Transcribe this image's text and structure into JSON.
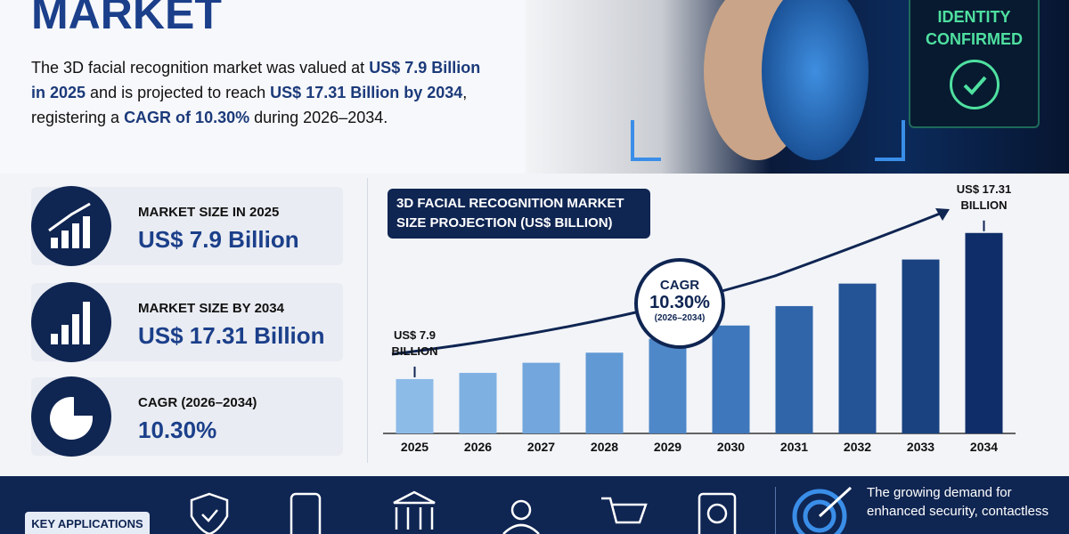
{
  "header": {
    "title": "MARKET",
    "intro": [
      {
        "text": "The 3D facial recognition market was valued at ",
        "bold": false
      },
      {
        "text": "US$ 7.9 Billion in 2025",
        "bold": true
      },
      {
        "text": " and is projected to reach ",
        "bold": false
      },
      {
        "text": "US$ 17.31 Billion by 2034",
        "bold": true
      },
      {
        "text": ", registering a ",
        "bold": false
      },
      {
        "text": "CAGR of 10.30%",
        "bold": true
      },
      {
        "text": " during 2026–2034.",
        "bold": false
      }
    ],
    "badge": "IDENTITY CONFIRMED"
  },
  "cards": [
    {
      "label": "MARKET SIZE IN 2025",
      "value": "US$ 7.9 Billion"
    },
    {
      "label": "MARKET SIZE BY 2034",
      "value": "US$ 17.31 Billion"
    },
    {
      "label": "CAGR (2026–2034)",
      "value": "10.30%"
    }
  ],
  "chart_data": {
    "type": "bar",
    "title": "3D FACIAL RECOGNITION MARKET SIZE PROJECTION (US$ BILLION)",
    "categories": [
      "2025",
      "2026",
      "2027",
      "2028",
      "2029",
      "2030",
      "2031",
      "2032",
      "2033",
      "2034"
    ],
    "values": [
      7.9,
      8.3,
      8.95,
      9.6,
      10.5,
      11.35,
      12.6,
      14.05,
      15.6,
      17.31
    ],
    "value_labels": [
      "US$ 7.9 BILLION",
      null,
      null,
      null,
      null,
      null,
      null,
      null,
      null,
      "US$ 17.31 BILLION"
    ],
    "colors": [
      "#8dbbe8",
      "#7fb0e2",
      "#72a6dc",
      "#6199d4",
      "#4f88c8",
      "#3e77bb",
      "#3065aa",
      "#245396",
      "#1a4280",
      "#0f2d68"
    ],
    "ylim": [
      4.4,
      18.5
    ],
    "annotation": {
      "label": "CAGR",
      "value": "10.30%",
      "period": "(2026–2034)"
    }
  },
  "footer": {
    "key": "KEY APPLICATIONS",
    "text": "The growing demand for enhanced security, contactless"
  }
}
